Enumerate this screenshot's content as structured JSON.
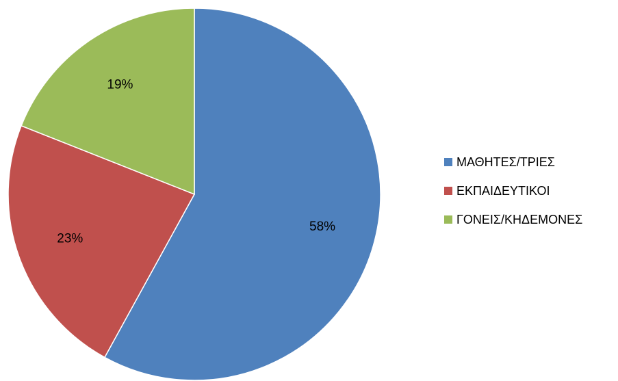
{
  "chart_data": {
    "type": "pie",
    "title": "",
    "categories": [
      "ΜΑΘΗΤΕΣ/ΤΡΙΕΣ",
      "ΕΚΠΑΙΔΕΥΤΙΚΟΙ",
      "ΓΟΝΕΙΣ/ΚΗΔΕΜΟΝΕΣ"
    ],
    "values": [
      58,
      23,
      19
    ],
    "data_labels": [
      "58%",
      "23%",
      "19%"
    ],
    "colors": [
      "#4f81bd",
      "#c0504d",
      "#9bbb59"
    ],
    "legend_position": "right"
  }
}
